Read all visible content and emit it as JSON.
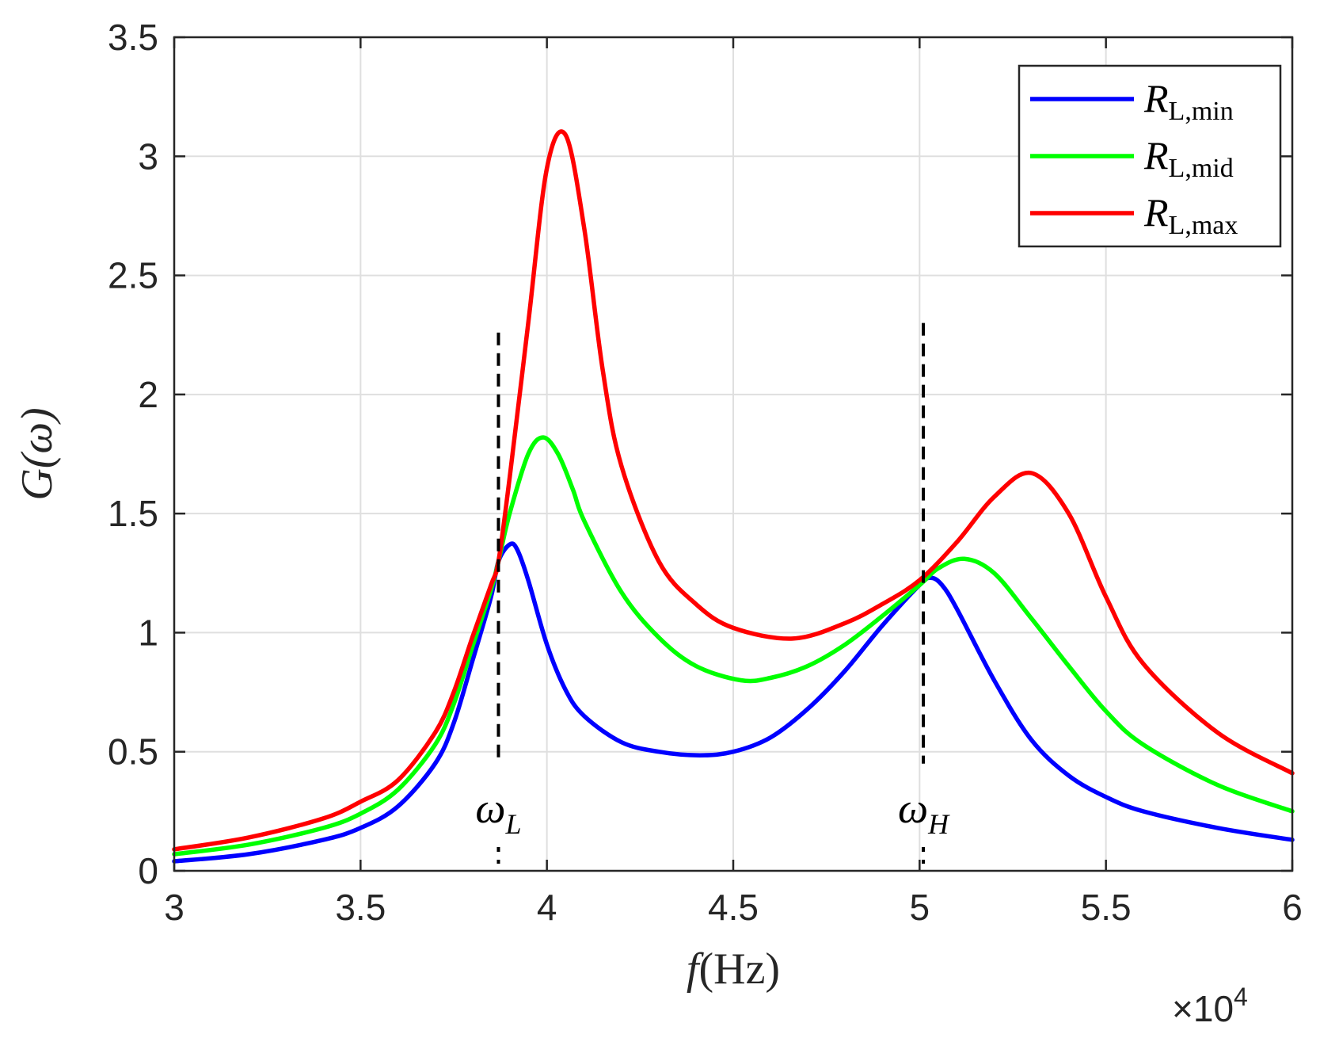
{
  "chart_data": {
    "type": "line",
    "title": "",
    "xlabel_var": "f",
    "xlabel_unit": "(Hz)",
    "ylabel": "G(ω)",
    "x_exponent_label": "×10",
    "x_exponent_power": "4",
    "xlim": [
      3,
      6
    ],
    "ylim": [
      0,
      3.5
    ],
    "xticks": [
      3,
      3.5,
      4,
      4.5,
      5,
      5.5,
      6
    ],
    "xtick_labels": [
      "3",
      "3.5",
      "4",
      "4.5",
      "5",
      "5.5",
      "6"
    ],
    "yticks": [
      0,
      0.5,
      1,
      1.5,
      2,
      2.5,
      3,
      3.5
    ],
    "ytick_labels": [
      "0",
      "0.5",
      "1",
      "1.5",
      "2",
      "2.5",
      "3",
      "3.5"
    ],
    "grid": true,
    "legend_position": "top-right",
    "series": [
      {
        "name": "R_L,min",
        "label_main": "R",
        "label_sub": "L,min",
        "color": "#0000ff",
        "x": [
          3.0,
          3.2,
          3.4,
          3.5,
          3.6,
          3.7,
          3.75,
          3.8,
          3.85,
          3.87,
          3.9,
          3.92,
          3.95,
          4.0,
          4.05,
          4.1,
          4.2,
          4.3,
          4.41,
          4.5,
          4.6,
          4.7,
          4.8,
          4.9,
          5.0,
          5.03,
          5.06,
          5.1,
          5.2,
          5.3,
          5.4,
          5.5,
          5.6,
          5.8,
          6.0
        ],
        "y": [
          0.04,
          0.07,
          0.13,
          0.18,
          0.27,
          0.45,
          0.62,
          0.88,
          1.15,
          1.3,
          1.37,
          1.35,
          1.22,
          0.95,
          0.76,
          0.65,
          0.54,
          0.5,
          0.485,
          0.5,
          0.56,
          0.68,
          0.84,
          1.03,
          1.2,
          1.23,
          1.2,
          1.1,
          0.8,
          0.55,
          0.4,
          0.31,
          0.25,
          0.18,
          0.13
        ]
      },
      {
        "name": "R_L,mid",
        "label_main": "R",
        "label_sub": "L,mid",
        "color": "#00ff00",
        "x": [
          3.0,
          3.2,
          3.4,
          3.5,
          3.6,
          3.7,
          3.75,
          3.8,
          3.85,
          3.87,
          3.9,
          3.95,
          3.99,
          4.03,
          4.07,
          4.1,
          4.2,
          4.3,
          4.4,
          4.52,
          4.6,
          4.7,
          4.8,
          4.9,
          5.0,
          5.05,
          5.12,
          5.2,
          5.3,
          5.4,
          5.5,
          5.6,
          5.8,
          6.0
        ],
        "y": [
          0.07,
          0.11,
          0.18,
          0.24,
          0.34,
          0.53,
          0.7,
          0.94,
          1.18,
          1.3,
          1.5,
          1.75,
          1.82,
          1.75,
          1.6,
          1.47,
          1.17,
          0.98,
          0.86,
          0.8,
          0.81,
          0.86,
          0.95,
          1.07,
          1.2,
          1.27,
          1.31,
          1.25,
          1.06,
          0.86,
          0.67,
          0.53,
          0.36,
          0.25
        ]
      },
      {
        "name": "R_L,max",
        "label_main": "R",
        "label_sub": "L,max",
        "color": "#ff0000",
        "x": [
          3.0,
          3.2,
          3.4,
          3.5,
          3.6,
          3.7,
          3.75,
          3.8,
          3.85,
          3.87,
          3.9,
          3.95,
          4.0,
          4.05,
          4.1,
          4.15,
          4.2,
          4.3,
          4.4,
          4.5,
          4.66,
          4.8,
          4.9,
          5.0,
          5.1,
          5.2,
          5.3,
          5.4,
          5.5,
          5.6,
          5.8,
          6.0
        ],
        "y": [
          0.09,
          0.14,
          0.22,
          0.29,
          0.38,
          0.58,
          0.75,
          0.98,
          1.2,
          1.3,
          1.65,
          2.3,
          2.95,
          3.09,
          2.7,
          2.1,
          1.7,
          1.3,
          1.12,
          1.02,
          0.975,
          1.04,
          1.12,
          1.22,
          1.38,
          1.57,
          1.67,
          1.5,
          1.15,
          0.87,
          0.58,
          0.41
        ]
      }
    ],
    "annotations": [
      {
        "name": "omega-L",
        "main": "ω",
        "sub": "L",
        "x": 3.87,
        "dash_y_top": 2.26,
        "label_y": 0.25
      },
      {
        "name": "omega-H",
        "main": "ω",
        "sub": "H",
        "x": 5.01,
        "dash_y_top": 2.3,
        "label_y": 0.25
      }
    ]
  }
}
